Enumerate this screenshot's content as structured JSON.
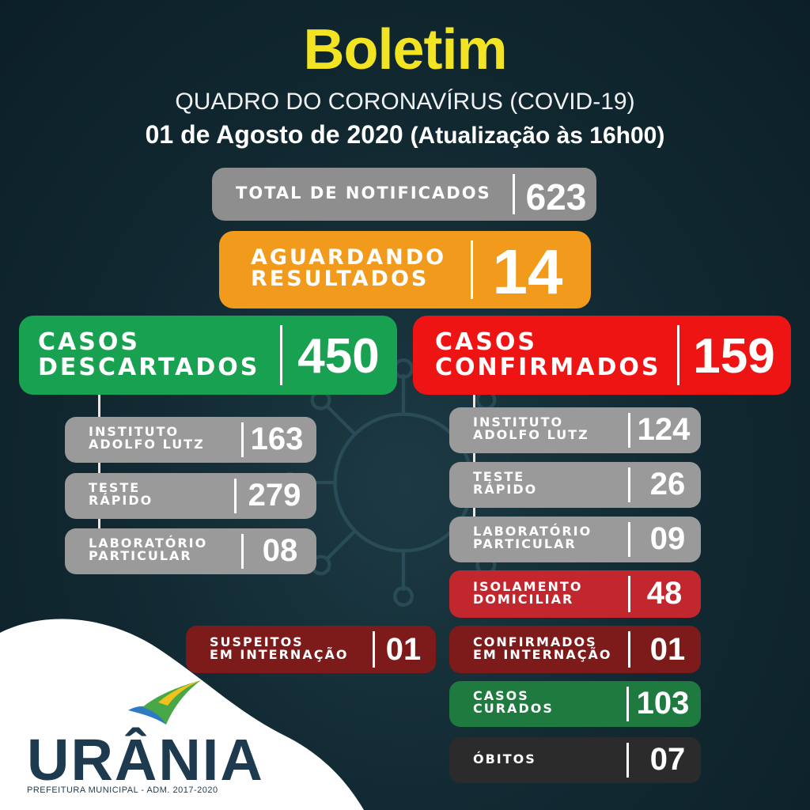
{
  "header": {
    "title": "Boletim",
    "subtitle": "QUADRO DO CORONAVÍRUS (COVID-19)",
    "date": "01 de Agosto de 2020",
    "update": "(Atualização às 16h00)"
  },
  "total": {
    "label": "TOTAL DE NOTIFICADOS",
    "value": "623"
  },
  "awaiting": {
    "label": "AGUARDANDO\nRESULTADOS",
    "value": "14"
  },
  "discarded": {
    "label": "CASOS\nDESCARTADOS",
    "value": "450",
    "items": [
      {
        "label": "INSTITUTO\nADOLFO LUTZ",
        "value": "163"
      },
      {
        "label": "TESTE\nRÁPIDO",
        "value": "279"
      },
      {
        "label": "LABORATÓRIO\nPARTICULAR",
        "value": "08"
      }
    ]
  },
  "confirmed": {
    "label": "CASOS\nCONFIRMADOS",
    "value": "159",
    "items": [
      {
        "label": "INSTITUTO\nADOLFO LUTZ",
        "value": "124"
      },
      {
        "label": "TESTE\nRÁPIDO",
        "value": "26"
      },
      {
        "label": "LABORATÓRIO\nPARTICULAR",
        "value": "09"
      },
      {
        "label": "ISOLAMENTO\nDOMICILIAR",
        "value": "48"
      },
      {
        "label": "CONFIRMADOS\nEM INTERNAÇÃO",
        "value": "01"
      },
      {
        "label": "CASOS\nCURADOS",
        "value": "103"
      },
      {
        "label": "ÓBITOS",
        "value": "07"
      }
    ]
  },
  "suspects": {
    "label": "SUSPEITOS\nEM INTERNAÇÃO",
    "value": "01"
  },
  "logo": {
    "name": "URÂNIA",
    "tagline": "PREFEITURA MUNICIPAL - ADM. 2017-2020"
  },
  "colors": {
    "title": "#f2e423",
    "total": "#8e8e8e",
    "awaiting": "#f29a1c",
    "discarded": "#18a150",
    "confirmed": "#ee1414",
    "isolation": "#c2272d",
    "hospital": "#7d1b1b",
    "cured": "#1e7a3e",
    "deaths": "#2b2b2b"
  }
}
